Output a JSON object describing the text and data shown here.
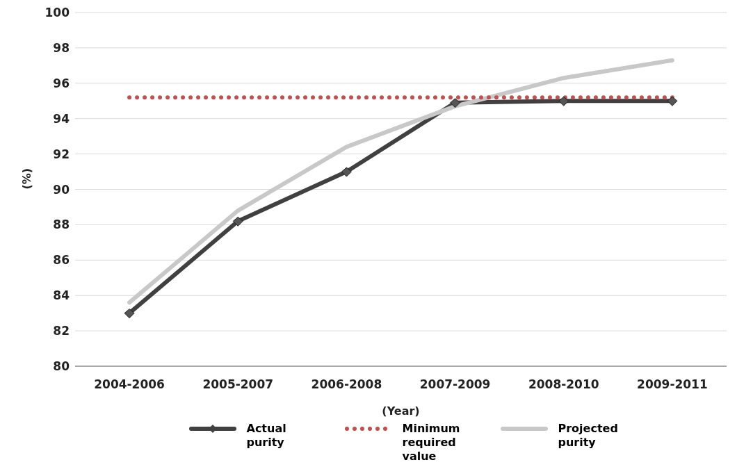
{
  "chart_data": {
    "type": "line",
    "xlabel": "(Year)",
    "ylabel": "(%)",
    "categories": [
      "2004-2006",
      "2005-2007",
      "2006-2008",
      "2007-2009",
      "2008-2010",
      "2009-2011"
    ],
    "series": [
      {
        "name": "Actual purity",
        "color": "#404040",
        "marker": "diamond",
        "line_style": "solid",
        "values": [
          83,
          88.2,
          91,
          94.9,
          95,
          95
        ]
      },
      {
        "name": "Minimum required value",
        "color": "#c0504d",
        "marker": "none",
        "line_style": "dotted",
        "values": [
          95.2,
          95.2,
          95.2,
          95.2,
          95.2,
          95.2
        ]
      },
      {
        "name": "Projected purity",
        "color": "#c8c8c8",
        "marker": "none",
        "line_style": "solid",
        "values": [
          83.6,
          88.8,
          92.4,
          94.7,
          96.3,
          97.3
        ]
      }
    ],
    "ylim": [
      80,
      100
    ],
    "yticks": [
      80,
      82,
      84,
      86,
      88,
      90,
      92,
      94,
      96,
      98,
      100
    ],
    "grid": "y",
    "legend": "bottom"
  }
}
